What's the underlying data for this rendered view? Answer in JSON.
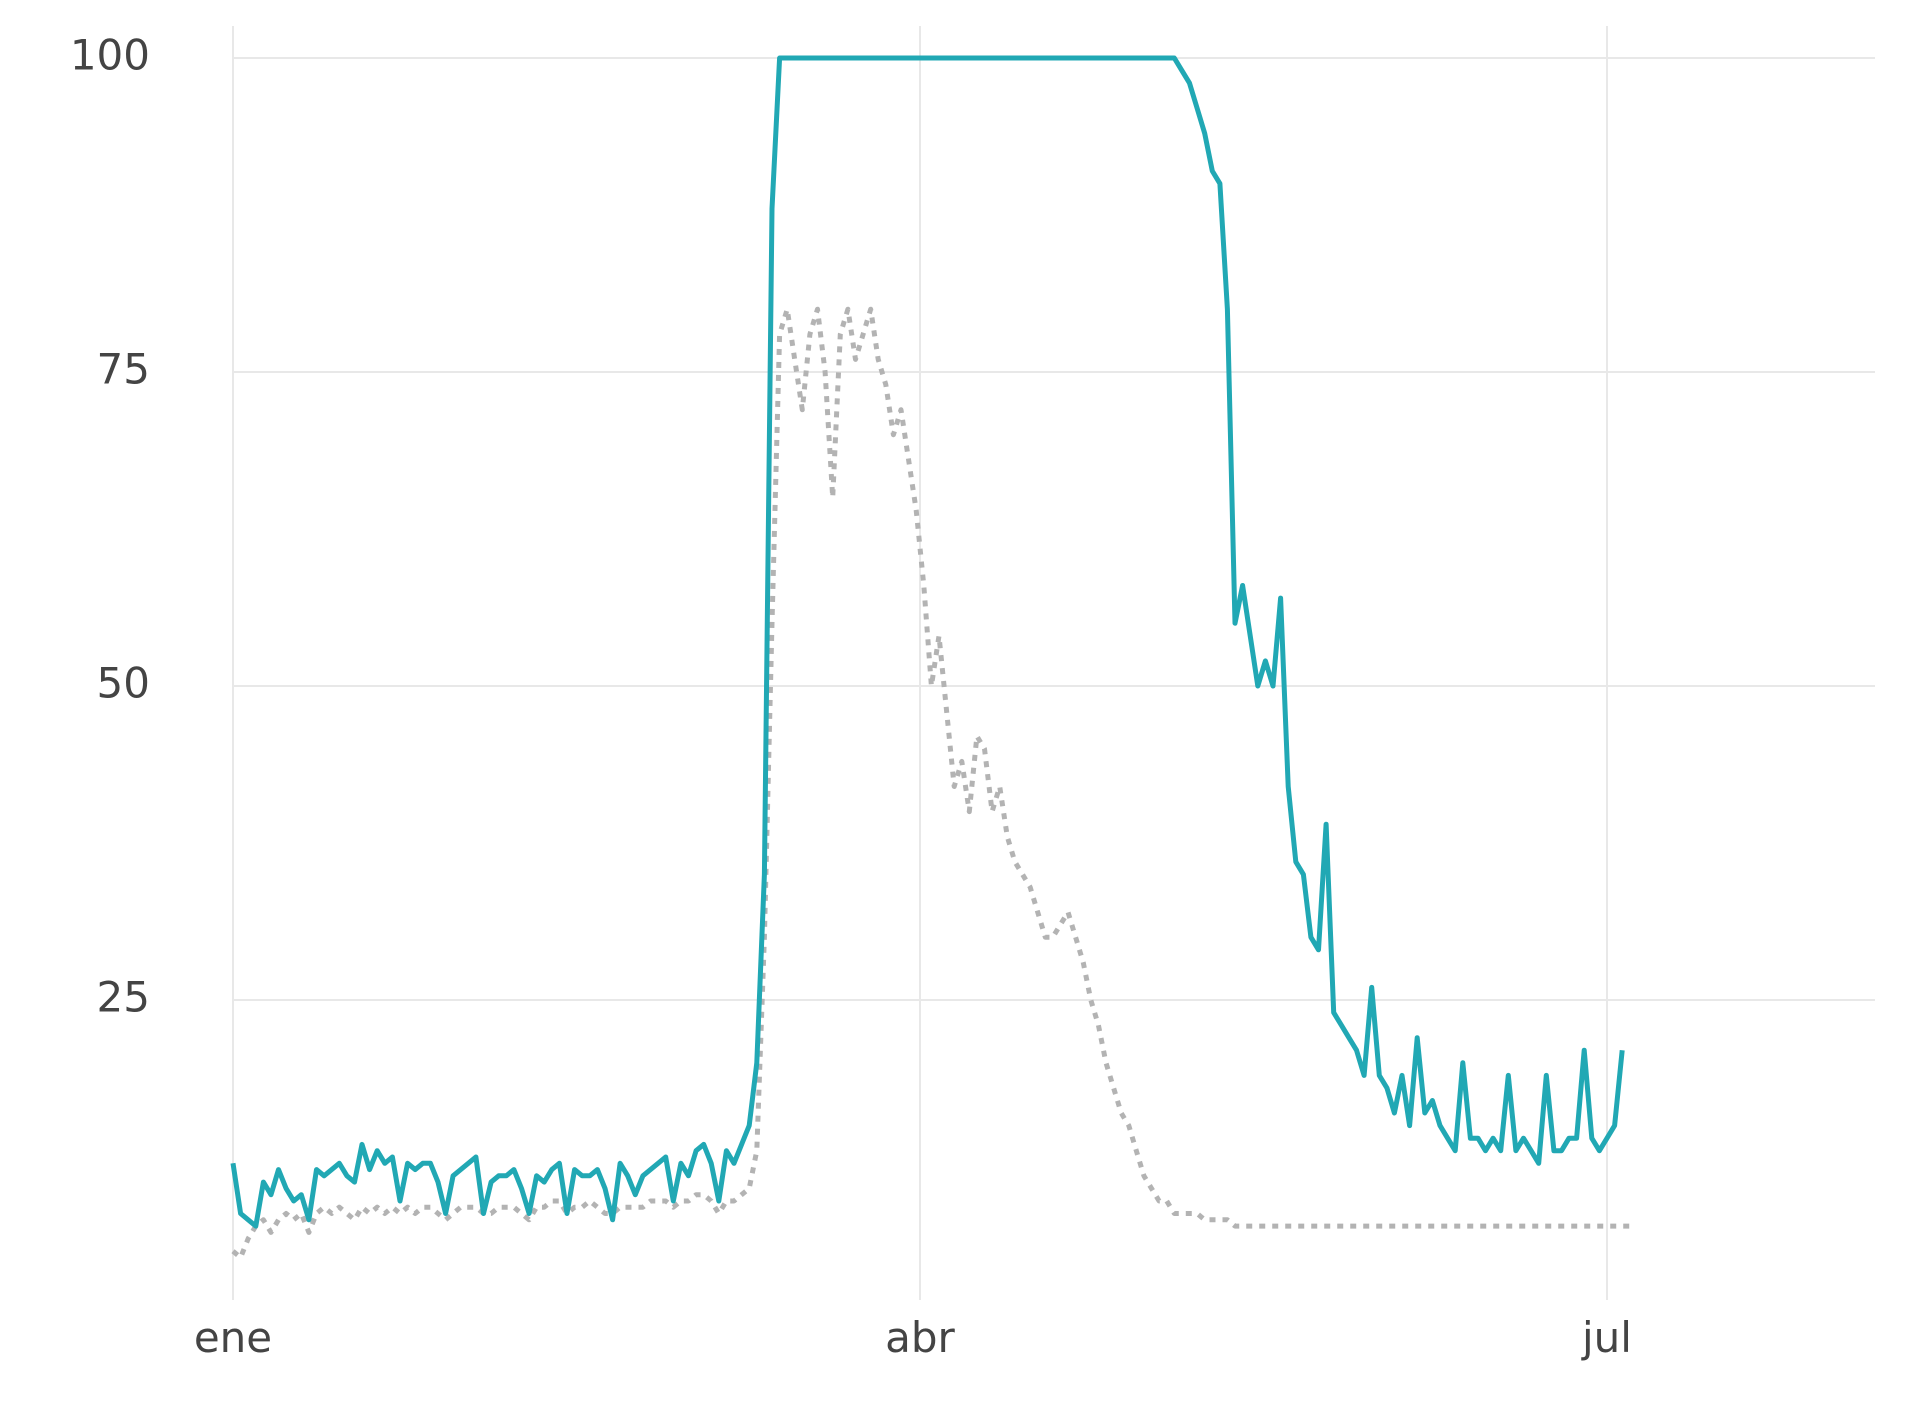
{
  "chart_data": {
    "type": "line",
    "title": "",
    "xlabel": "",
    "ylabel": "",
    "x_tick_labels": [
      "ene",
      "abr",
      "jul"
    ],
    "y_ticks": [
      25,
      50,
      75,
      100
    ],
    "ylim": [
      0,
      101
    ],
    "grid": true,
    "legend": "none",
    "series": [
      {
        "style": "solid",
        "color": "#21a8b4",
        "values": [
          12,
          8,
          7.5,
          7,
          10.5,
          9.5,
          11.5,
          10,
          9,
          9.5,
          7.5,
          11.5,
          11,
          11.5,
          12,
          11,
          10.5,
          13.5,
          11.5,
          13,
          12,
          12.5,
          9,
          12,
          11.5,
          12,
          12,
          10.5,
          8,
          11,
          11.5,
          12,
          12.5,
          8,
          10.5,
          11,
          11,
          11.5,
          10,
          8,
          11,
          10.5,
          11.5,
          12,
          8,
          11.5,
          11,
          11,
          11.5,
          10,
          7.5,
          12,
          11,
          9.5,
          11,
          11.5,
          12,
          12.5,
          9,
          12,
          11,
          13,
          13.5,
          12,
          9,
          13,
          12,
          13.5,
          15,
          20,
          35,
          88,
          100,
          100,
          100,
          100,
          100,
          100,
          100,
          100,
          100,
          100,
          100,
          100,
          100,
          100,
          100,
          100,
          100,
          100,
          100,
          100,
          100,
          100,
          100,
          100,
          100,
          100,
          100,
          100,
          100,
          100,
          100,
          100,
          100,
          100,
          100,
          100,
          100,
          100,
          100,
          100,
          100,
          100,
          100,
          100,
          100,
          100,
          100,
          100,
          100,
          100,
          100,
          100,
          100,
          99,
          98,
          96,
          94,
          91,
          90,
          80,
          55,
          58,
          54,
          50,
          52,
          50,
          57,
          42,
          36,
          35,
          30,
          29,
          39,
          24,
          23,
          22,
          21,
          19,
          26,
          19,
          18,
          16,
          19,
          15,
          22,
          16,
          17,
          15,
          14,
          13,
          20,
          14,
          14,
          13,
          14,
          13,
          19,
          13,
          14,
          13,
          12,
          19,
          13,
          13,
          14,
          14,
          21,
          14,
          13,
          14,
          15,
          21
        ]
      },
      {
        "style": "dotted",
        "color": "#b3b3b3",
        "values": [
          5,
          4.5,
          6,
          7,
          7.5,
          6.5,
          7.5,
          8,
          7.5,
          8,
          6.5,
          8,
          8.5,
          8,
          8.5,
          8,
          7.5,
          8.5,
          8,
          8.5,
          8,
          8.5,
          8,
          8.5,
          8,
          8.5,
          8.5,
          8,
          7.5,
          8,
          8.5,
          8.5,
          8.5,
          8,
          8,
          8.5,
          8.5,
          8.5,
          8,
          7.5,
          8.5,
          8.5,
          9,
          9,
          8,
          8.5,
          8.5,
          9,
          8.5,
          8,
          8,
          8.5,
          8.5,
          8.5,
          8.5,
          9,
          9,
          9,
          8.5,
          9,
          9,
          9.5,
          9.5,
          9,
          8,
          9,
          9,
          9.5,
          10,
          13,
          30,
          55,
          78,
          80,
          76,
          72,
          78,
          80,
          75,
          65,
          78,
          80,
          76,
          78,
          80,
          76,
          74,
          70,
          72,
          68,
          64,
          58,
          50,
          54,
          48,
          42,
          44,
          40,
          46,
          45,
          40,
          42,
          38,
          36,
          35,
          34,
          32,
          30,
          30,
          31,
          32,
          30,
          28,
          25,
          23,
          20,
          18,
          16,
          15,
          13,
          11,
          10,
          9,
          9,
          8,
          8,
          8,
          8,
          7.5,
          7.5,
          7.5,
          7.5,
          7,
          7,
          7,
          7,
          7,
          7,
          7,
          7,
          7,
          7,
          7,
          7,
          7,
          7,
          7,
          7,
          7,
          7,
          7,
          7,
          7,
          7,
          7,
          7,
          7,
          7,
          7,
          7,
          7,
          7,
          7,
          7,
          7,
          7,
          7,
          7,
          7,
          7,
          7,
          7,
          7,
          7,
          7,
          7,
          7,
          7,
          7,
          7,
          7,
          7,
          7,
          7,
          7
        ]
      }
    ]
  },
  "colors": {
    "grid": "#e8e8e8",
    "background": "#ffffff",
    "tick_text": "#444444"
  }
}
